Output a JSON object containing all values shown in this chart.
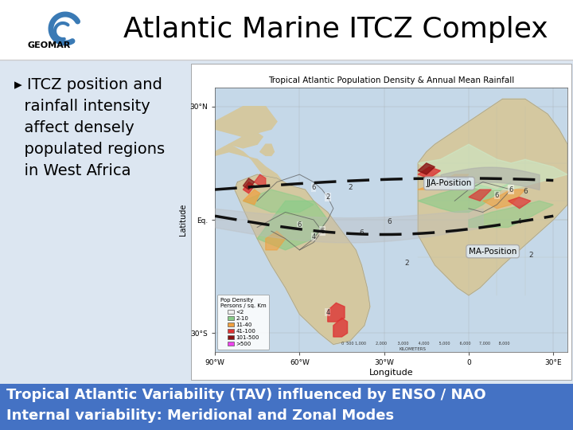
{
  "title": "Atlantic Marine ITCZ Complex",
  "title_fontsize": 26,
  "title_color": "#000000",
  "header_bg": "#ffffff",
  "content_bg": "#dce6f1",
  "left_panel_bg": "#dce6f1",
  "bullet_lines": [
    "▸ ITCZ position and",
    "  rainfall intensity",
    "  affect densely",
    "  populated regions",
    "  in West Africa"
  ],
  "bullet_fontsize": 14,
  "bullet_color": "#000000",
  "footer_bg": "#4472c4",
  "footer_text_line1": "Tropical Atlantic Variability (TAV) influenced by ENSO / NAO",
  "footer_text_line2": "Internal variability: Meridional and Zonal Modes",
  "footer_fontsize": 13,
  "footer_color": "#ffffff",
  "geomar_text": "GEOMAR",
  "slide_bg": "#ffffff",
  "map_title": "Tropical Atlantic Population Density & Annual Mean Rainfall",
  "map_bg": "#e8e8e8",
  "ocean_color": "#c8dce8",
  "land_color_base": "#e8e4d8",
  "jja_label": "JJA-Position",
  "ma_label": "MA-Position",
  "x_labels": [
    "90°W",
    "60°W",
    "30°W",
    "0",
    "30°E"
  ],
  "y_labels": [
    "30°N",
    "Eq.",
    "30°S"
  ],
  "xlabel": "Longitude",
  "ylabel": "Latitude",
  "legend_title": "Pop Density\nPersons / sq. Km",
  "legend_colors": [
    "#eeeeee",
    "#88cc88",
    "#f0a040",
    "#dd3333",
    "#881111",
    "#ee44ee"
  ],
  "legend_labels": [
    "<2",
    "2-10",
    "11-40",
    "41-100",
    "101-500",
    ">500"
  ]
}
